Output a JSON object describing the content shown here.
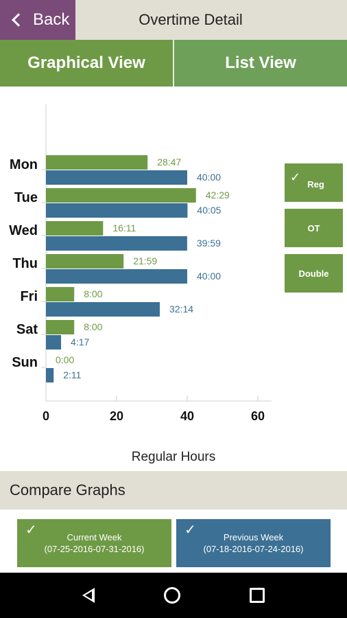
{
  "header": {
    "back_label": "Back",
    "title": "Overtime Detail"
  },
  "tabs": [
    {
      "label": "Graphical View",
      "active": true
    },
    {
      "label": "List View",
      "active": false
    }
  ],
  "legend": [
    {
      "label": "Reg",
      "checked": true
    },
    {
      "label": "OT",
      "checked": false
    },
    {
      "label": "Double",
      "checked": false
    }
  ],
  "colors": {
    "current": "#6f9a45",
    "previous": "#3c7094",
    "purple": "#7a4a78",
    "beige": "#e1dfd3"
  },
  "chart_data": {
    "type": "bar",
    "orientation": "horizontal",
    "categories": [
      "Mon",
      "Tue",
      "Wed",
      "Thu",
      "Fri",
      "Sat",
      "Sun"
    ],
    "series": [
      {
        "name": "Current Week",
        "values": [
          28.78,
          42.48,
          16.18,
          21.98,
          8.0,
          8.0,
          0.0
        ],
        "labels": [
          "28:47",
          "42:29",
          "16:11",
          "21:59",
          "8:00",
          "8:00",
          "0:00"
        ],
        "color": "#6f9a45"
      },
      {
        "name": "Previous Week",
        "values": [
          40.0,
          40.08,
          39.98,
          40.0,
          32.23,
          4.28,
          2.18
        ],
        "labels": [
          "40:00",
          "40:05",
          "39:59",
          "40:00",
          "32:14",
          "4:17",
          "2:11"
        ],
        "color": "#3c7094"
      }
    ],
    "xlabel": "Regular Hours",
    "xticks": [
      "0",
      "20",
      "40",
      "60"
    ],
    "xlim": [
      0,
      60
    ],
    "grid": true
  },
  "compare": {
    "title": "Compare Graphs",
    "current": {
      "label": "Current Week",
      "range": "(07-25-2016-07-31-2016)"
    },
    "previous": {
      "label": "Previous Week",
      "range": "(07-18-2016-07-24-2016)"
    }
  },
  "navbar": {
    "icons": [
      "back-triangle-icon",
      "home-circle-icon",
      "recent-square-icon"
    ]
  }
}
